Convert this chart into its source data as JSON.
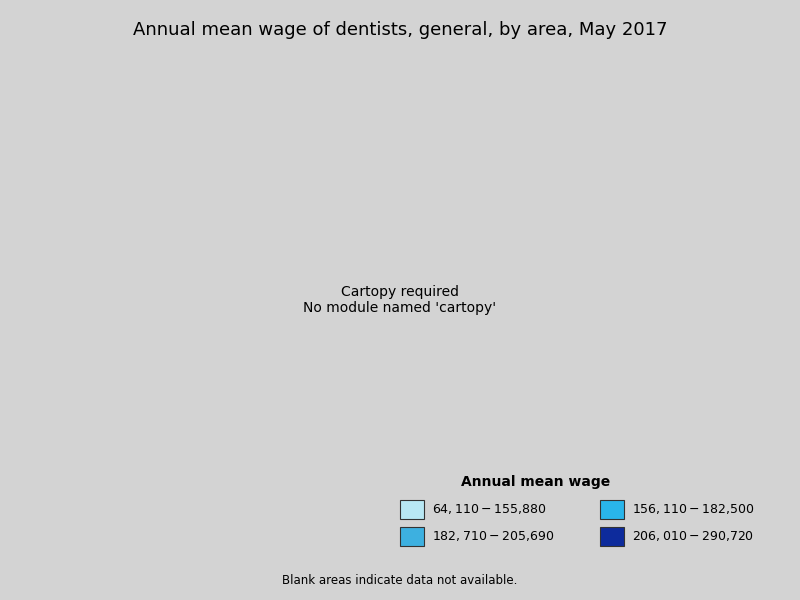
{
  "title": "Annual mean wage of dentists, general, by area, May 2017",
  "legend_title": "Annual mean wage",
  "legend_labels": [
    "$64,110 - $155,880",
    "$182,710 - $205,690",
    "$156,110 - $182,500",
    "$206,010 - $290,720"
  ],
  "legend_colors": [
    "#b8e8f4",
    "#3db0e0",
    "#29b5ea",
    "#0d2b9c"
  ],
  "background_color": "#d3d3d3",
  "no_data_color": "#ffffff",
  "edge_color": "#444444",
  "state_edge_color": "#111111",
  "footnote": "Blank areas indicate data not available.",
  "title_fontsize": 13,
  "legend_title_fontsize": 10,
  "legend_fontsize": 9,
  "footnote_fontsize": 8.5,
  "random_seed": 2017,
  "color_weights": [
    0.22,
    0.22,
    0.22,
    0.22,
    0.12
  ]
}
